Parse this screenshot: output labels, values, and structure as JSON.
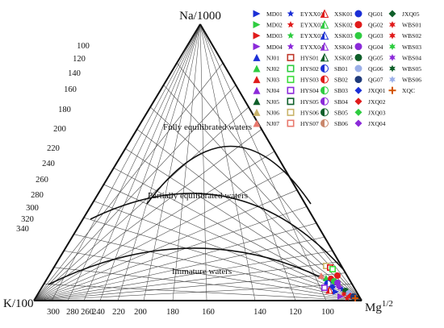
{
  "corners": {
    "top": "Na/1000",
    "left": "K/100",
    "right_base": "Mg",
    "right_sup": "1/2"
  },
  "left_ticks": [
    "100",
    "120",
    "140",
    "160",
    "180",
    "200",
    "220",
    "240",
    "260",
    "280",
    "300",
    "320",
    "340"
  ],
  "bottom_ticks": [
    "300",
    "280",
    "260",
    "240",
    "220",
    "200",
    "180",
    "160",
    "140",
    "120",
    "100"
  ],
  "zones": {
    "full": "Fully equilibrated waters",
    "partial": "Partially equilibrated waters",
    "immature": "Immature waters"
  },
  "legend": [
    {
      "label": "MD01",
      "symbol": "tri-right",
      "color": "#1b2fd6"
    },
    {
      "label": "MD02",
      "symbol": "tri-right",
      "color": "#2ecc40"
    },
    {
      "label": "MD03",
      "symbol": "tri-right",
      "color": "#e01b1b"
    },
    {
      "label": "MD04",
      "symbol": "tri-right",
      "color": "#8b2ad9"
    },
    {
      "label": "NJ01",
      "symbol": "tri-up",
      "color": "#1b2fd6"
    },
    {
      "label": "NJ02",
      "symbol": "tri-up",
      "color": "#2ecc40"
    },
    {
      "label": "NJ03",
      "symbol": "tri-up",
      "color": "#e01b1b"
    },
    {
      "label": "NJ04",
      "symbol": "tri-up",
      "color": "#8b2ad9"
    },
    {
      "label": "NJ05",
      "symbol": "tri-up",
      "color": "#0f5f2a"
    },
    {
      "label": "NJ06",
      "symbol": "tri-up",
      "color": "#c9b36a"
    },
    {
      "label": "NJ07",
      "symbol": "tri-up",
      "color": "#e8786d"
    },
    {
      "label": "EYXX01",
      "symbol": "star",
      "color": "#1b2fd6"
    },
    {
      "label": "EYXX02",
      "symbol": "star",
      "color": "#e01b1b"
    },
    {
      "label": "EYXX03",
      "symbol": "star",
      "color": "#2ecc40"
    },
    {
      "label": "EYXX04",
      "symbol": "star",
      "color": "#8b2ad9"
    },
    {
      "label": "HYS01",
      "symbol": "sq-open",
      "color": "#c0392b"
    },
    {
      "label": "HYS02",
      "symbol": "sq-open",
      "color": "#2ecc40"
    },
    {
      "label": "HYS03",
      "symbol": "sq-open",
      "color": "#3ddc3d"
    },
    {
      "label": "HYS04",
      "symbol": "sq-open",
      "color": "#8b2ad9"
    },
    {
      "label": "HYS05",
      "symbol": "sq-open",
      "color": "#0f5f2a"
    },
    {
      "label": "HYS06",
      "symbol": "sq-open",
      "color": "#c9b36a"
    },
    {
      "label": "HYS07",
      "symbol": "sq-open",
      "color": "#e8786d"
    },
    {
      "label": "XSK01",
      "symbol": "tri-half",
      "color": "#e01b1b"
    },
    {
      "label": "XSK02",
      "symbol": "tri-half",
      "color": "#2ecc40"
    },
    {
      "label": "XSK03",
      "symbol": "tri-half",
      "color": "#1b2fd6"
    },
    {
      "label": "XSK04",
      "symbol": "tri-half",
      "color": "#8b2ad9"
    },
    {
      "label": "XSK05",
      "symbol": "tri-half",
      "color": "#0f5f2a"
    },
    {
      "label": "SB01",
      "symbol": "circ-half",
      "color": "#1b2fd6"
    },
    {
      "label": "SB02",
      "symbol": "circ-half",
      "color": "#e01b1b"
    },
    {
      "label": "SB03",
      "symbol": "circ-half",
      "color": "#2ecc40"
    },
    {
      "label": "SB04",
      "symbol": "circ-half",
      "color": "#8b2ad9"
    },
    {
      "label": "SB05",
      "symbol": "circ-half",
      "color": "#0f5f2a"
    },
    {
      "label": "SB06",
      "symbol": "circ-half",
      "color": "#c9866a"
    },
    {
      "label": "QG01",
      "symbol": "circle",
      "color": "#1b2fd6"
    },
    {
      "label": "QG02",
      "symbol": "circle",
      "color": "#e01b1b"
    },
    {
      "label": "QG03",
      "symbol": "circle",
      "color": "#2ecc40"
    },
    {
      "label": "QG04",
      "symbol": "circle",
      "color": "#8b2ad9"
    },
    {
      "label": "QG05",
      "symbol": "circle",
      "color": "#0f5f2a"
    },
    {
      "label": "QG06",
      "symbol": "circle",
      "color": "#9aaee8"
    },
    {
      "label": "QG07",
      "symbol": "circle",
      "color": "#1f3a7a"
    },
    {
      "label": "JXQ01",
      "symbol": "diamond",
      "color": "#1b2fd6"
    },
    {
      "label": "JXQ02",
      "symbol": "diamond",
      "color": "#e01b1b"
    },
    {
      "label": "JXQ03",
      "symbol": "diamond",
      "color": "#2ecc40"
    },
    {
      "label": "JXQ04",
      "symbol": "diamond",
      "color": "#8b2ad9"
    },
    {
      "label": "JXQ05",
      "symbol": "diamond",
      "color": "#0f5f2a"
    },
    {
      "label": "WBS01",
      "symbol": "star6",
      "color": "#e01b1b"
    },
    {
      "label": "WBS02",
      "symbol": "star6",
      "color": "#e01b1b"
    },
    {
      "label": "WBS03",
      "symbol": "star6",
      "color": "#2ecc40"
    },
    {
      "label": "WBS04",
      "symbol": "star6",
      "color": "#8b2ad9"
    },
    {
      "label": "WBS05",
      "symbol": "star6",
      "color": "#0f5f2a"
    },
    {
      "label": "WBS06",
      "symbol": "star6",
      "color": "#9aaee8"
    },
    {
      "label": "XQC",
      "symbol": "cross",
      "color": "#d35400"
    }
  ]
}
